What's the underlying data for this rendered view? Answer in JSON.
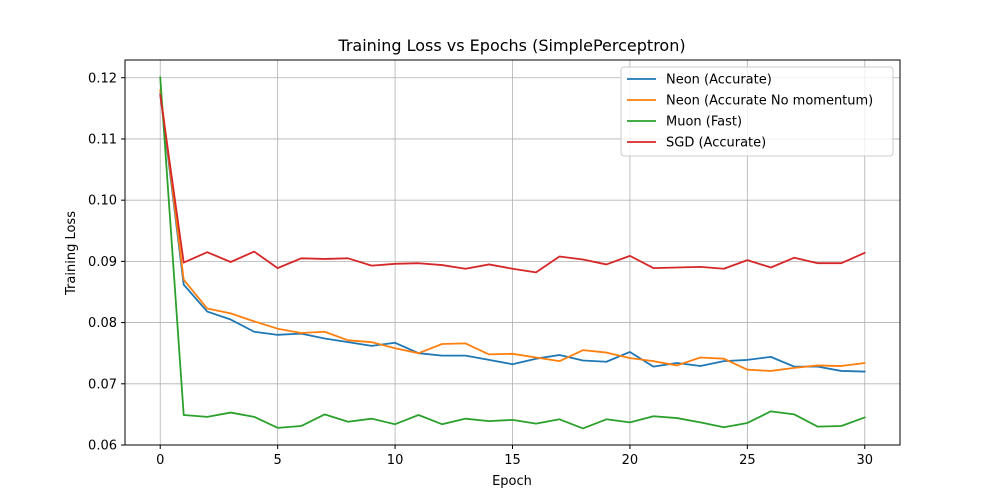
{
  "chart_data": {
    "type": "line",
    "title": "Training Loss vs Epochs (SimplePerceptron)",
    "xlabel": "Epoch",
    "ylabel": "Training Loss",
    "xlim": [
      -1.5,
      31.5
    ],
    "ylim": [
      0.06,
      0.1229
    ],
    "xticks": [
      0,
      5,
      10,
      15,
      20,
      25,
      30
    ],
    "xtick_labels": [
      "0",
      "5",
      "10",
      "15",
      "20",
      "25",
      "30"
    ],
    "yticks": [
      0.06,
      0.07,
      0.08,
      0.09,
      0.1,
      0.11,
      0.12
    ],
    "ytick_labels": [
      "0.06",
      "0.07",
      "0.08",
      "0.09",
      "0.10",
      "0.11",
      "0.12"
    ],
    "grid": true,
    "legend_position": "top-right",
    "x": [
      0,
      1,
      2,
      3,
      4,
      5,
      6,
      7,
      8,
      9,
      10,
      11,
      12,
      13,
      14,
      15,
      16,
      17,
      18,
      19,
      20,
      21,
      22,
      23,
      24,
      25,
      26,
      27,
      28,
      29,
      30
    ],
    "series": [
      {
        "name": "Neon (Accurate)",
        "color": "#1f77b4",
        "values": [
          0.1175,
          0.0862,
          0.0818,
          0.0805,
          0.0785,
          0.078,
          0.0782,
          0.0774,
          0.0768,
          0.0762,
          0.0767,
          0.075,
          0.0746,
          0.0746,
          0.0739,
          0.0732,
          0.0741,
          0.0747,
          0.0738,
          0.0736,
          0.0752,
          0.0728,
          0.0734,
          0.0729,
          0.0737,
          0.0739,
          0.0744,
          0.0728,
          0.0728,
          0.0721,
          0.072
        ]
      },
      {
        "name": "Neon (Accurate No momentum)",
        "color": "#ff7f0e",
        "values": [
          0.118,
          0.087,
          0.0823,
          0.0815,
          0.0802,
          0.079,
          0.0783,
          0.0785,
          0.0771,
          0.0768,
          0.0758,
          0.075,
          0.0765,
          0.0766,
          0.0748,
          0.0749,
          0.0743,
          0.0737,
          0.0755,
          0.0751,
          0.0742,
          0.0737,
          0.073,
          0.0743,
          0.0741,
          0.0723,
          0.0721,
          0.0726,
          0.073,
          0.0729,
          0.0734
        ]
      },
      {
        "name": "Muon (Fast)",
        "color": "#2ca02c",
        "values": [
          0.1201,
          0.0649,
          0.0646,
          0.0653,
          0.0646,
          0.0628,
          0.0631,
          0.065,
          0.0638,
          0.0643,
          0.0634,
          0.0649,
          0.0634,
          0.0643,
          0.0639,
          0.0641,
          0.0635,
          0.0642,
          0.0627,
          0.0642,
          0.0637,
          0.0647,
          0.0644,
          0.0637,
          0.0629,
          0.0636,
          0.0655,
          0.065,
          0.063,
          0.0631,
          0.0645
        ]
      },
      {
        "name": "SGD (Accurate)",
        "color": "#d62728",
        "values": [
          0.1172,
          0.0898,
          0.0915,
          0.0899,
          0.0916,
          0.0889,
          0.0905,
          0.0904,
          0.0905,
          0.0893,
          0.0896,
          0.0897,
          0.0894,
          0.0888,
          0.0895,
          0.0888,
          0.0882,
          0.0908,
          0.0903,
          0.0895,
          0.0909,
          0.0889,
          0.089,
          0.0891,
          0.0888,
          0.0902,
          0.089,
          0.0906,
          0.0897,
          0.0897,
          0.0914
        ]
      }
    ]
  }
}
